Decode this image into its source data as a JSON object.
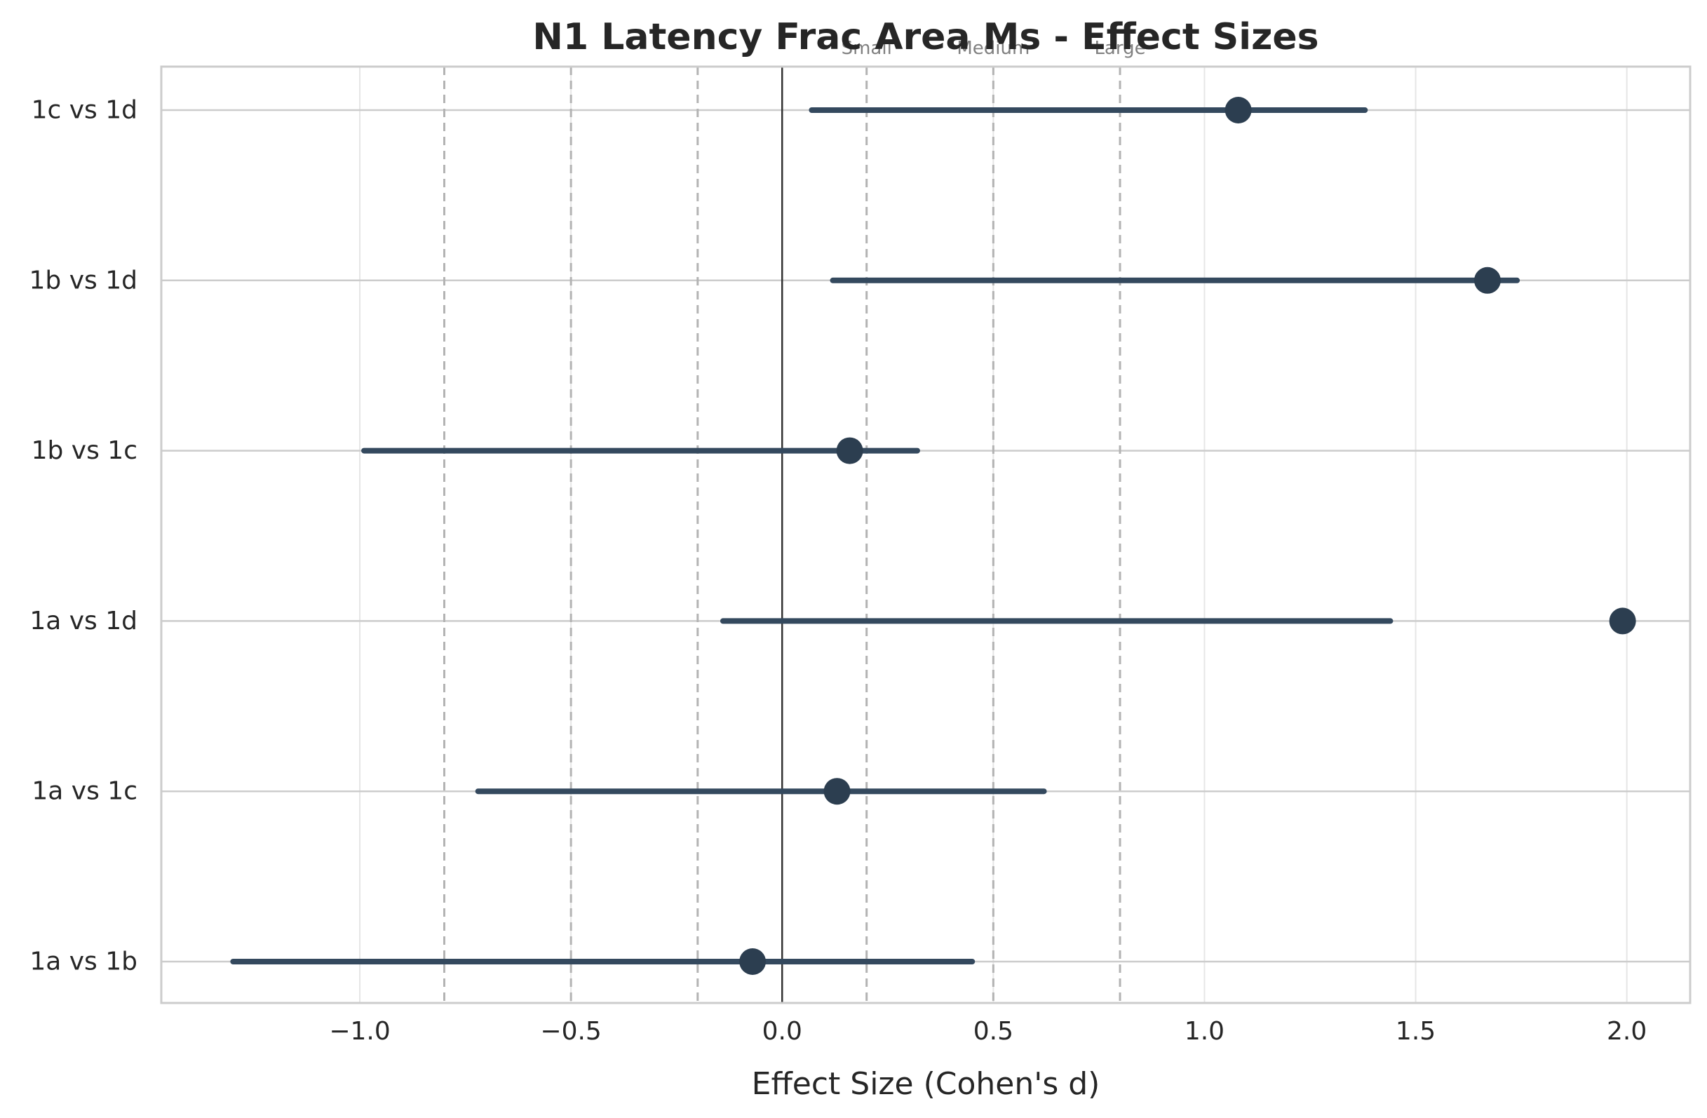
{
  "chart_data": {
    "type": "forest",
    "title": "N1 Latency Frac Area Ms - Effect Sizes",
    "xlabel": "Effect Size (Cohen's d)",
    "ylabel": "",
    "xlim": [
      -1.47,
      2.15
    ],
    "xticks": [
      -1.0,
      -0.5,
      0.0,
      0.5,
      1.0,
      1.5,
      2.0
    ],
    "xtick_labels": [
      "−1.0",
      "−0.5",
      "0.0",
      "0.5",
      "1.0",
      "1.5",
      "2.0"
    ],
    "grid": true,
    "comparisons": [
      {
        "label": "1a vs 1b",
        "d": -0.07,
        "ci": [
          -1.3,
          0.45
        ]
      },
      {
        "label": "1a vs 1c",
        "d": 0.13,
        "ci": [
          -0.72,
          0.62
        ]
      },
      {
        "label": "1a vs 1d",
        "d": 1.99,
        "ci": [
          -0.14,
          1.44
        ]
      },
      {
        "label": "1b vs 1c",
        "d": 0.16,
        "ci": [
          -0.99,
          0.32
        ]
      },
      {
        "label": "1b vs 1d",
        "d": 1.67,
        "ci": [
          0.12,
          1.74
        ]
      },
      {
        "label": "1c vs 1d",
        "d": 1.08,
        "ci": [
          0.07,
          1.38
        ]
      }
    ],
    "reference_lines": [
      -0.8,
      -0.5,
      -0.2,
      0.2,
      0.5,
      0.8
    ],
    "reference_labels": [
      {
        "text": "Small",
        "x": 0.2
      },
      {
        "text": "Medium",
        "x": 0.5
      },
      {
        "text": "Large",
        "x": 0.8
      }
    ],
    "colors": {
      "marker": "#2c3e50",
      "ci_line": "#34495e",
      "zero_line": "#333333",
      "reference_line": "#b3b3b3",
      "grid": "#e6e6e6",
      "frame": "#cccccc"
    }
  }
}
